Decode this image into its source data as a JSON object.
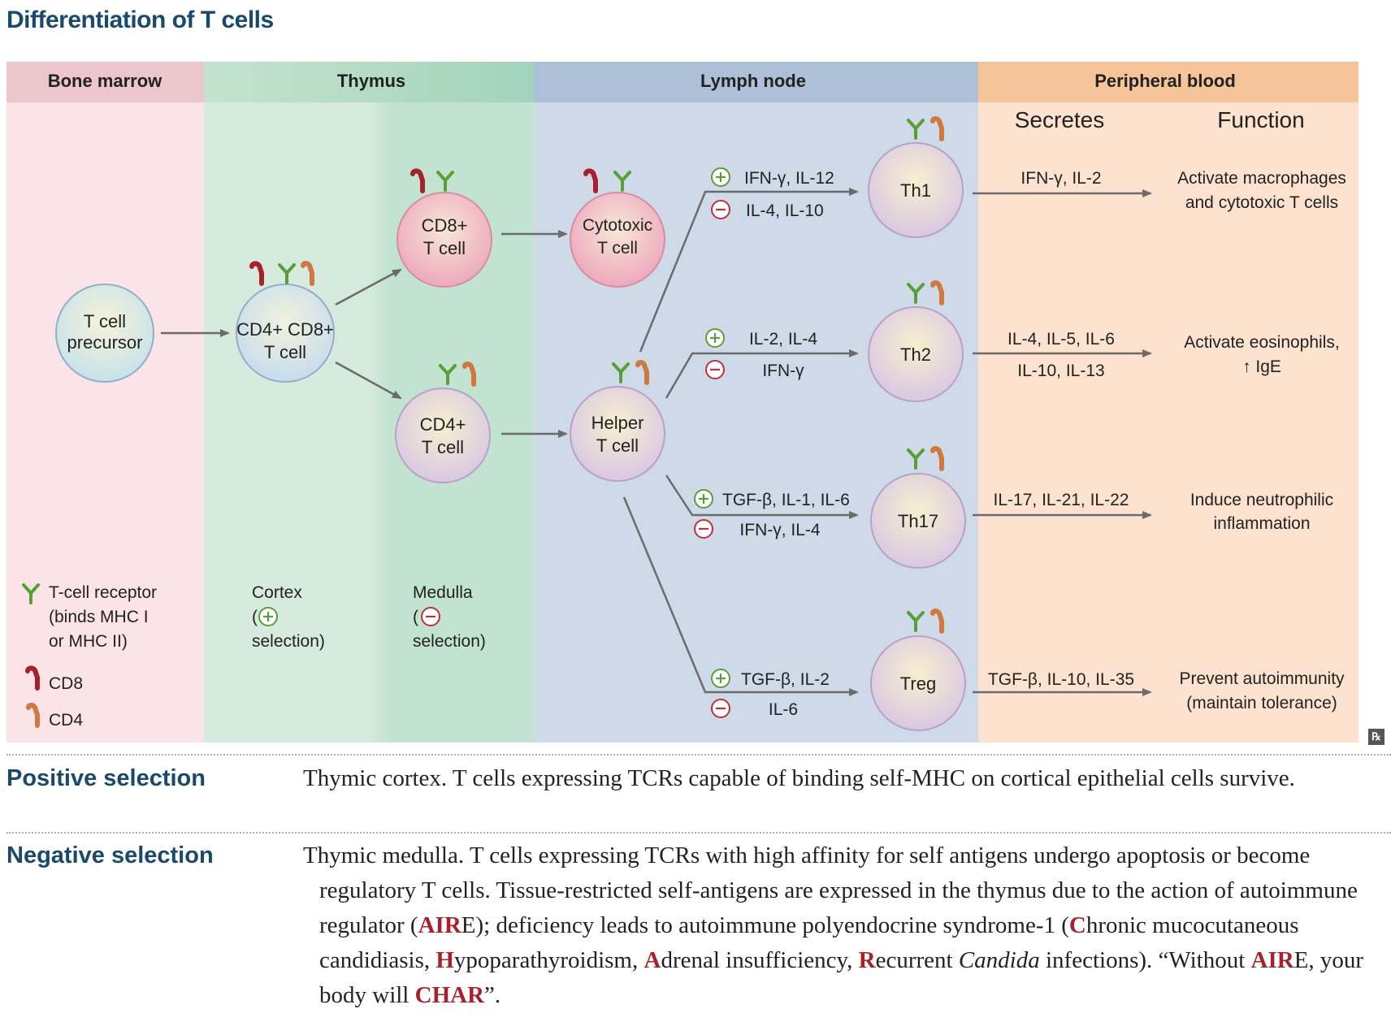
{
  "title": "Differentiation of T cells",
  "sections": {
    "bone_marrow": "Bone marrow",
    "thymus": "Thymus",
    "lymph_node": "Lymph node",
    "peripheral_blood": "Peripheral blood"
  },
  "columns": {
    "secretes": "Secretes",
    "function": "Function"
  },
  "cells": {
    "precursor": [
      "T cell",
      "precursor"
    ],
    "double_positive": [
      "CD4+ CD8+",
      "T cell"
    ],
    "cd8": [
      "CD8+",
      "T cell"
    ],
    "cd4": [
      "CD4+",
      "T cell"
    ],
    "cytotoxic": [
      "Cytotoxic",
      "T cell"
    ],
    "helper": [
      "Helper",
      "T cell"
    ],
    "th1": "Th1",
    "th2": "Th2",
    "th17": "Th17",
    "treg": "Treg"
  },
  "pathways": [
    {
      "plus": "IFN-γ, IL-12",
      "minus": "IL-4, IL-10",
      "secretes": "IFN-γ, IL-2",
      "function": [
        "Activate macrophages",
        "and cytotoxic T cells"
      ]
    },
    {
      "plus": "IL-2, IL-4",
      "minus": "IFN-γ",
      "secretes": [
        "IL-4, IL-5, IL-6",
        "IL-10, IL-13"
      ],
      "function": [
        "Activate eosinophils,",
        "↑ IgE"
      ]
    },
    {
      "plus": "TGF-β, IL-1, IL-6",
      "minus": "IFN-γ, IL-4",
      "secretes": "IL-17, IL-21, IL-22",
      "function": [
        "Induce neutrophilic",
        "inflammation"
      ]
    },
    {
      "plus": "TGF-β, IL-2",
      "minus": "IL-6",
      "secretes": "TGF-β, IL-10, IL-35",
      "function": [
        "Prevent autoimmunity",
        "(maintain tolerance)"
      ]
    }
  ],
  "legend": {
    "tcr": [
      "T-cell receptor",
      "(binds MHC I",
      "or MHC II)"
    ],
    "cd8": "CD8",
    "cd4": "CD4",
    "cortex": [
      "Cortex",
      "(",
      "selection)"
    ],
    "medulla": [
      "Medulla",
      "(",
      "selection)"
    ]
  },
  "badge": "℞",
  "colors": {
    "bone_marrow_bg": "#fbe3e8",
    "bone_marrow_hdr": "#ebc6cd",
    "thymus_cortex_bg": "#d6ebdd",
    "thymus_medulla_bg": "#c3e3d1",
    "thymus_hdr": "#a8d5bd",
    "lymph_bg": "#cfdae8",
    "lymph_hdr": "#adc0d7",
    "blood_bg": "#fce2cf",
    "blood_hdr": "#f6c499",
    "tcr": "#5a9e3a",
    "cd8": "#a8202c",
    "cd4": "#d07840",
    "heading": "#1a4a6b",
    "highlight": "#a8202c"
  },
  "positive_selection": {
    "label": "Positive selection",
    "text": "Thymic cortex. T cells expressing TCRs capable of binding self-MHC on cortical epithelial cells survive."
  },
  "negative_selection": {
    "label": "Negative selection",
    "t1": "Thymic medulla. T cells expressing TCRs with high affinity for self antigens undergo apoptosis or become regulatory T cells. Tissue-restricted self-antigens are expressed in the thymus due to the action of autoimmune regulator (",
    "aire1": "AIR",
    "t2": "E); deficiency leads to autoimmune polyendocrine syndrome-1 (",
    "c": "C",
    "t3": "hronic mucocutaneous candidiasis, ",
    "h": "H",
    "t4": "ypoparathyroidism, ",
    "a": "A",
    "t5": "drenal insufficiency, ",
    "r": "R",
    "t6": "ecurrent ",
    "candida": "Candida",
    "t7": " infections). “Without ",
    "aire2": "AIR",
    "t8": "E, your body will ",
    "char": "CHAR",
    "t9": "”."
  }
}
